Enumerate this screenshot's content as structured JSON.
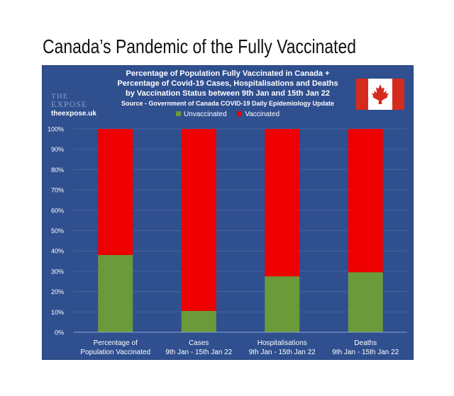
{
  "page": {
    "headline": "Canada’s Pandemic of the Fully Vaccinated"
  },
  "brand": {
    "logo_line1": "THE",
    "logo_line2": "EXPOSE",
    "url": "theexpose.uk"
  },
  "colors": {
    "unvaccinated": "#6a9a3a",
    "vaccinated": "#ee0000",
    "background": "#2f4f8f"
  },
  "icons": {
    "flag": "canada-flag-icon"
  },
  "chart_data": {
    "type": "bar",
    "stacked": true,
    "title_lines": [
      "Percentage of Population Fully Vaccinated in Canada +",
      "Percentage of Covid-19 Cases, Hospitalisations and Deaths",
      "by Vaccination Status between 9th Jan and 15th Jan 22"
    ],
    "source": "Source - Government of Canada COVID-19 Daily Epidemiology Update",
    "categories": [
      [
        "Percentage of",
        "Population Vaccinated"
      ],
      [
        "Cases",
        "9th Jan - 15th Jan 22"
      ],
      [
        "Hospitalisations",
        "9th Jan - 15th Jan 22"
      ],
      [
        "Deaths",
        "9th Jan - 15th Jan 22"
      ]
    ],
    "series": [
      {
        "name": "Unvaccinated",
        "values": [
          38,
          10.5,
          27.5,
          29.5
        ]
      },
      {
        "name": "Vaccinated",
        "values": [
          62,
          89.5,
          72.5,
          70.5
        ]
      }
    ],
    "ylim": [
      0,
      100
    ],
    "yticks": [
      "0%",
      "10%",
      "20%",
      "30%",
      "40%",
      "50%",
      "60%",
      "70%",
      "80%",
      "90%",
      "100%"
    ],
    "legend_position": "top"
  }
}
